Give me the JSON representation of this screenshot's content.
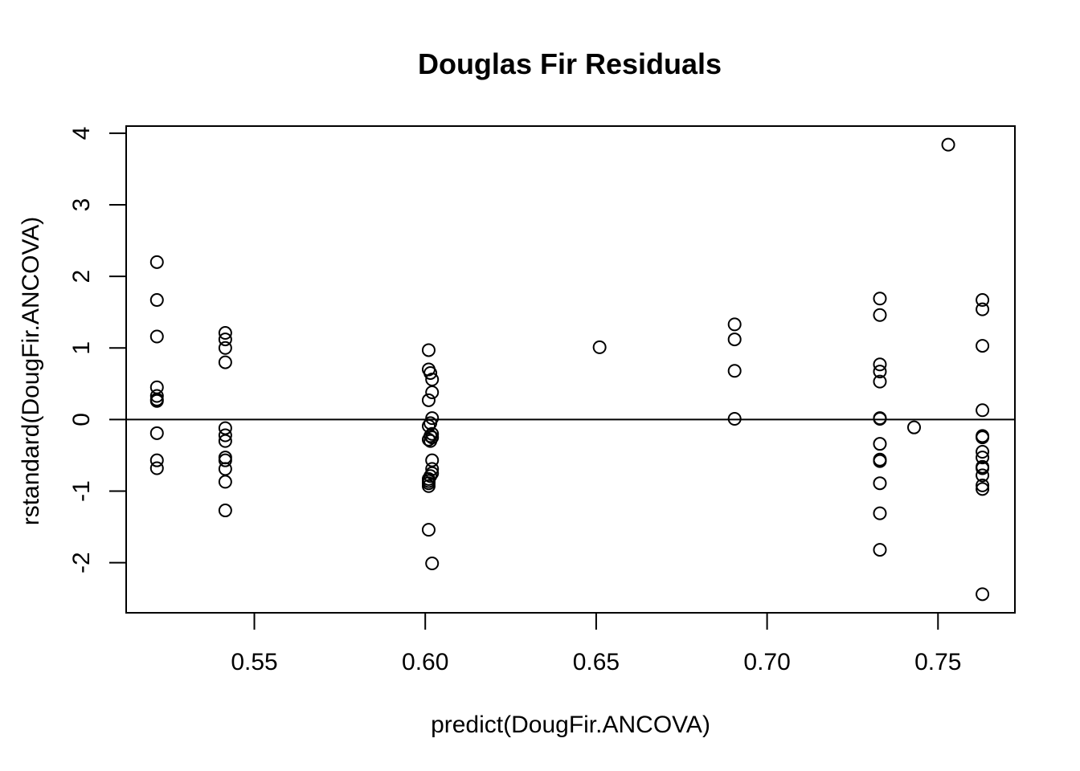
{
  "chart_data": {
    "type": "scatter",
    "title": "Douglas Fir Residuals",
    "xlabel": "predict(DougFir.ANCOVA)",
    "ylabel": "rstandard(DougFir.ANCOVA)",
    "xlim": [
      0.5125,
      0.7725
    ],
    "ylim": [
      -2.7,
      4.1
    ],
    "x_ticks": [
      0.55,
      0.6,
      0.65,
      0.7,
      0.75
    ],
    "x_tick_labels": [
      "0.55",
      "0.60",
      "0.65",
      "0.70",
      "0.75"
    ],
    "y_ticks": [
      -2,
      -1,
      0,
      1,
      2,
      3,
      4
    ],
    "y_tick_labels": [
      "-2",
      "-1",
      "0",
      "1",
      "2",
      "3",
      "4"
    ],
    "reference_line_y": 0,
    "marker": "open-circle",
    "grid": false,
    "points": [
      {
        "x": 0.5215,
        "y": 2.2
      },
      {
        "x": 0.5215,
        "y": 1.67
      },
      {
        "x": 0.5215,
        "y": 1.16
      },
      {
        "x": 0.5215,
        "y": 0.45
      },
      {
        "x": 0.5215,
        "y": 0.33
      },
      {
        "x": 0.5215,
        "y": 0.28
      },
      {
        "x": 0.5215,
        "y": 0.26
      },
      {
        "x": 0.5215,
        "y": -0.19
      },
      {
        "x": 0.5215,
        "y": -0.57
      },
      {
        "x": 0.5215,
        "y": -0.68
      },
      {
        "x": 0.5415,
        "y": 1.21
      },
      {
        "x": 0.5415,
        "y": 1.12
      },
      {
        "x": 0.5415,
        "y": 1.0
      },
      {
        "x": 0.5415,
        "y": 0.8
      },
      {
        "x": 0.5415,
        "y": -0.12
      },
      {
        "x": 0.5415,
        "y": -0.22
      },
      {
        "x": 0.5415,
        "y": -0.3
      },
      {
        "x": 0.5415,
        "y": -0.53
      },
      {
        "x": 0.5415,
        "y": -0.57
      },
      {
        "x": 0.5415,
        "y": -0.69
      },
      {
        "x": 0.5415,
        "y": -0.87
      },
      {
        "x": 0.5415,
        "y": -1.27
      },
      {
        "x": 0.601,
        "y": 0.97
      },
      {
        "x": 0.601,
        "y": 0.7
      },
      {
        "x": 0.6015,
        "y": 0.65
      },
      {
        "x": 0.602,
        "y": 0.56
      },
      {
        "x": 0.602,
        "y": 0.38
      },
      {
        "x": 0.601,
        "y": 0.27
      },
      {
        "x": 0.602,
        "y": 0.02
      },
      {
        "x": 0.6015,
        "y": -0.05
      },
      {
        "x": 0.601,
        "y": -0.09
      },
      {
        "x": 0.602,
        "y": -0.2
      },
      {
        "x": 0.6015,
        "y": -0.23
      },
      {
        "x": 0.602,
        "y": -0.25
      },
      {
        "x": 0.601,
        "y": -0.28
      },
      {
        "x": 0.6015,
        "y": -0.3
      },
      {
        "x": 0.602,
        "y": -0.57
      },
      {
        "x": 0.602,
        "y": -0.69
      },
      {
        "x": 0.602,
        "y": -0.75
      },
      {
        "x": 0.6015,
        "y": -0.79
      },
      {
        "x": 0.601,
        "y": -0.83
      },
      {
        "x": 0.601,
        "y": -0.86
      },
      {
        "x": 0.601,
        "y": -0.89
      },
      {
        "x": 0.601,
        "y": -0.93
      },
      {
        "x": 0.601,
        "y": -1.54
      },
      {
        "x": 0.602,
        "y": -2.01
      },
      {
        "x": 0.651,
        "y": 1.01
      },
      {
        "x": 0.6905,
        "y": 1.33
      },
      {
        "x": 0.6905,
        "y": 1.12
      },
      {
        "x": 0.6905,
        "y": 0.68
      },
      {
        "x": 0.6905,
        "y": 0.01
      },
      {
        "x": 0.733,
        "y": 1.69
      },
      {
        "x": 0.733,
        "y": 1.46
      },
      {
        "x": 0.733,
        "y": 0.77
      },
      {
        "x": 0.733,
        "y": 0.67
      },
      {
        "x": 0.733,
        "y": 0.53
      },
      {
        "x": 0.733,
        "y": 0.02
      },
      {
        "x": 0.733,
        "y": 0.01
      },
      {
        "x": 0.733,
        "y": -0.34
      },
      {
        "x": 0.733,
        "y": -0.56
      },
      {
        "x": 0.733,
        "y": -0.58
      },
      {
        "x": 0.733,
        "y": -0.89
      },
      {
        "x": 0.733,
        "y": -1.31
      },
      {
        "x": 0.733,
        "y": -1.82
      },
      {
        "x": 0.743,
        "y": -0.11
      },
      {
        "x": 0.753,
        "y": 3.84
      },
      {
        "x": 0.763,
        "y": 1.67
      },
      {
        "x": 0.763,
        "y": 1.54
      },
      {
        "x": 0.763,
        "y": 1.03
      },
      {
        "x": 0.763,
        "y": 0.13
      },
      {
        "x": 0.763,
        "y": -0.23
      },
      {
        "x": 0.763,
        "y": -0.25
      },
      {
        "x": 0.763,
        "y": -0.45
      },
      {
        "x": 0.763,
        "y": -0.53
      },
      {
        "x": 0.763,
        "y": -0.66
      },
      {
        "x": 0.763,
        "y": -0.68
      },
      {
        "x": 0.763,
        "y": -0.78
      },
      {
        "x": 0.763,
        "y": -0.92
      },
      {
        "x": 0.763,
        "y": -0.97
      },
      {
        "x": 0.763,
        "y": -2.44
      }
    ]
  }
}
